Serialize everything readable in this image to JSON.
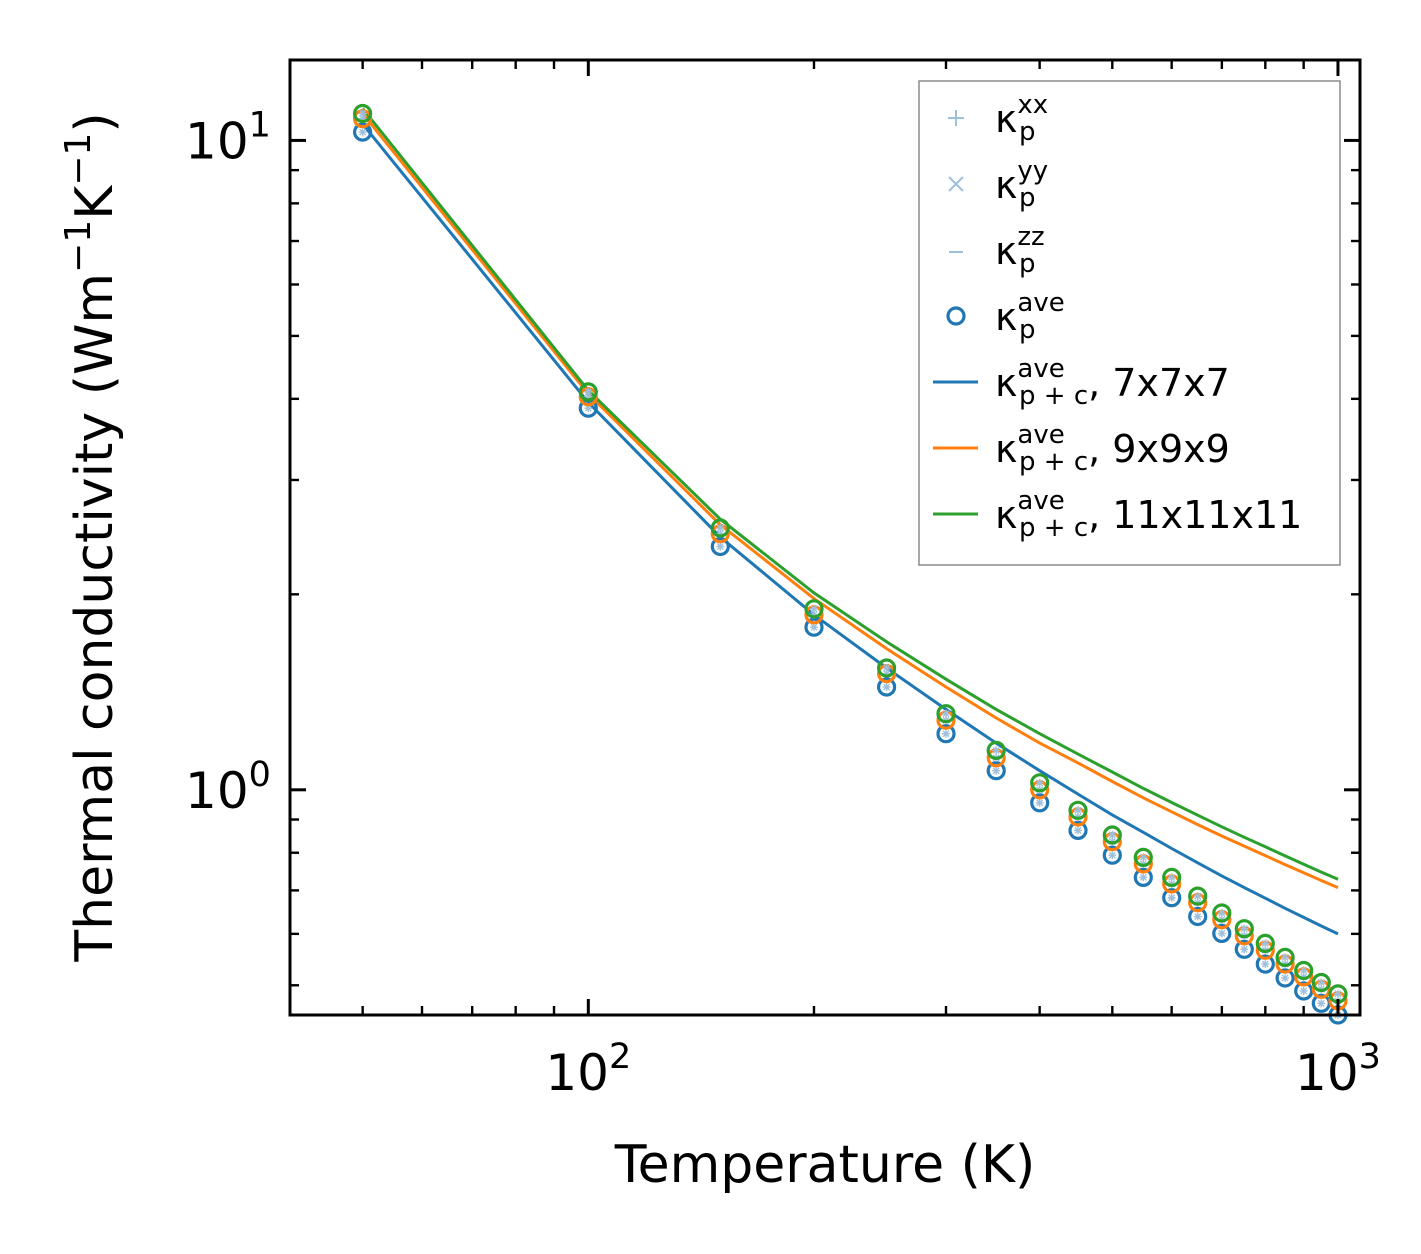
{
  "chart_data": {
    "type": "scatter",
    "xlabel": "Temperature (K)",
    "ylabel": "Thermal conductivity (Wm",
    "ylabel_sup1": "−1",
    "ylabel_mid": "K",
    "ylabel_sup2": "−1",
    "ylabel_end": ")",
    "x_scale": "log",
    "y_scale": "log",
    "xlim": [
      40,
      1070
    ],
    "ylim": [
      0.45,
      13.3
    ],
    "x_ticks": [
      {
        "value": 100,
        "base": "10",
        "exp": "2"
      },
      {
        "value": 1000,
        "base": "10",
        "exp": "3"
      }
    ],
    "y_ticks": [
      {
        "value": 1,
        "base": "10",
        "exp": "0"
      },
      {
        "value": 10,
        "base": "10",
        "exp": "1"
      }
    ],
    "x": [
      50,
      100,
      150,
      200,
      250,
      300,
      350,
      400,
      450,
      500,
      550,
      600,
      650,
      700,
      750,
      800,
      850,
      900,
      950,
      1000
    ],
    "series": [
      {
        "name": "7x7x7 kp_ave",
        "kind": "marker",
        "marker": "circle",
        "color": "#1f77b4",
        "values": [
          10.3,
          3.87,
          2.37,
          1.78,
          1.44,
          1.22,
          1.07,
          0.955,
          0.866,
          0.793,
          0.733,
          0.682,
          0.638,
          0.601,
          0.568,
          0.539,
          0.513,
          0.49,
          0.469,
          0.45
        ]
      },
      {
        "name": "9x9x9 kp_ave",
        "kind": "marker",
        "marker": "circle",
        "color": "#ff7f0e",
        "values": [
          10.8,
          4.03,
          2.48,
          1.86,
          1.51,
          1.28,
          1.12,
          1.0,
          0.908,
          0.832,
          0.769,
          0.716,
          0.67,
          0.631,
          0.596,
          0.566,
          0.539,
          0.515,
          0.493,
          0.473
        ]
      },
      {
        "name": "11x11x11 kp_ave",
        "kind": "marker",
        "marker": "circle",
        "color": "#2ca02c",
        "values": [
          11.0,
          4.1,
          2.53,
          1.9,
          1.54,
          1.31,
          1.15,
          1.025,
          0.93,
          0.852,
          0.787,
          0.733,
          0.686,
          0.646,
          0.611,
          0.58,
          0.552,
          0.527,
          0.505,
          0.485
        ]
      },
      {
        "name": "κ_p+c^ave, 7x7x7",
        "kind": "line",
        "color": "#1f77b4",
        "values": [
          10.6,
          3.95,
          2.45,
          1.86,
          1.54,
          1.33,
          1.18,
          1.07,
          0.985,
          0.915,
          0.86,
          0.812,
          0.772,
          0.737,
          0.707,
          0.681,
          0.657,
          0.636,
          0.617,
          0.6
        ]
      },
      {
        "name": "κ_p+c^ave, 9x9x9",
        "kind": "line",
        "color": "#ff7f0e",
        "values": [
          11.0,
          4.07,
          2.56,
          1.97,
          1.65,
          1.44,
          1.29,
          1.18,
          1.1,
          1.03,
          0.972,
          0.925,
          0.884,
          0.849,
          0.819,
          0.792,
          0.767,
          0.745,
          0.725,
          0.707
        ]
      },
      {
        "name": "κ_p+c^ave, 11x11x11",
        "kind": "line",
        "color": "#2ca02c",
        "values": [
          11.2,
          4.12,
          2.61,
          2.01,
          1.69,
          1.48,
          1.33,
          1.22,
          1.135,
          1.065,
          1.005,
          0.956,
          0.914,
          0.877,
          0.845,
          0.817,
          0.791,
          0.768,
          0.747,
          0.728
        ]
      }
    ],
    "cross_marker_color": "#9ec0db",
    "legend": {
      "placement": "top-right",
      "entries": [
        {
          "marker": "plus",
          "sym": "κ",
          "sub": "p",
          "sup": "xx",
          "suffix": "",
          "color": "#9ec0db"
        },
        {
          "marker": "x",
          "sym": "κ",
          "sub": "p",
          "sup": "yy",
          "suffix": "",
          "color": "#9ec0db"
        },
        {
          "marker": "dash",
          "sym": "κ",
          "sub": "p",
          "sup": "zz",
          "suffix": "",
          "color": "#9ec0db"
        },
        {
          "marker": "circle",
          "sym": "κ",
          "sub": "p",
          "sup": "ave",
          "suffix": "",
          "color": "#1f77b4"
        },
        {
          "marker": "line",
          "sym": "κ",
          "sub": "p + c",
          "sup": "ave",
          "suffix": ", 7x7x7",
          "color": "#1f77b4"
        },
        {
          "marker": "line",
          "sym": "κ",
          "sub": "p + c",
          "sup": "ave",
          "suffix": ", 9x9x9",
          "color": "#ff7f0e"
        },
        {
          "marker": "line",
          "sym": "κ",
          "sub": "p + c",
          "sup": "ave",
          "suffix": ", 11x11x11",
          "color": "#2ca02c"
        }
      ]
    }
  }
}
